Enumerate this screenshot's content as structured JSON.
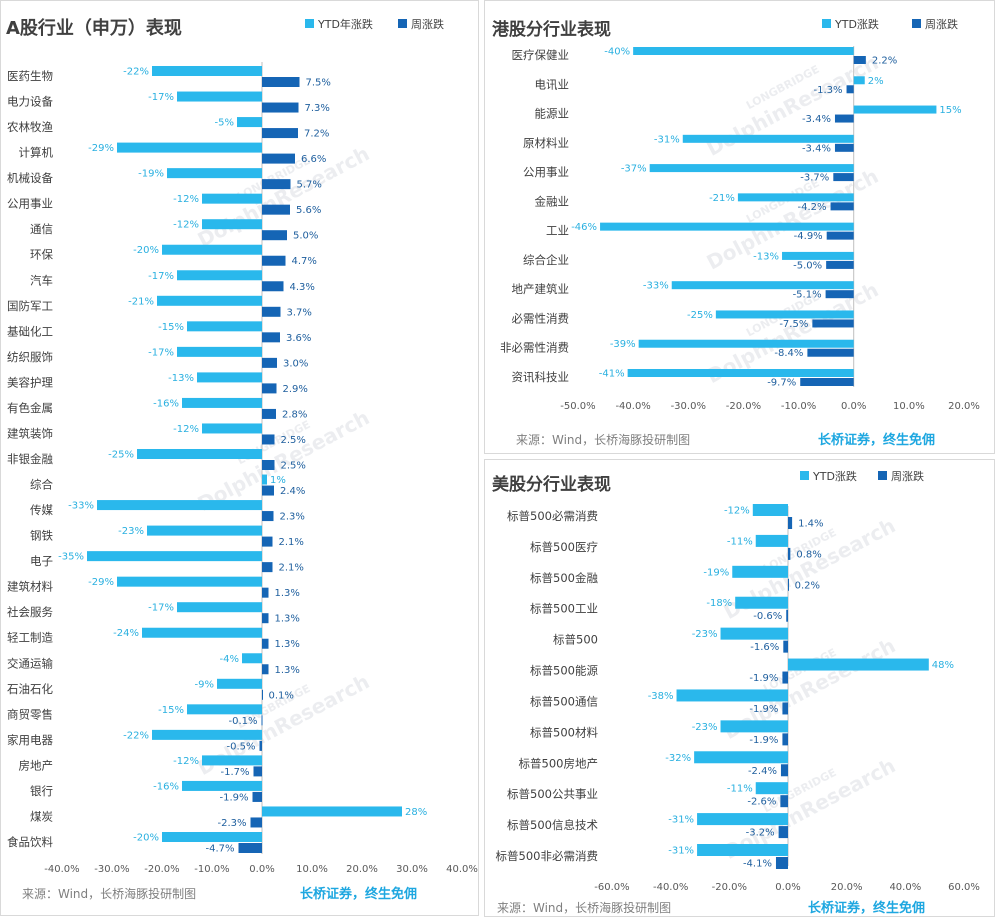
{
  "colors": {
    "ytd": "#2ab8ec",
    "week": "#1565b5",
    "weekLabel": "#1f5f9e",
    "ytdLabel": "#2ab0e0"
  },
  "watermark": {
    "line1": "LONGBRIDGE",
    "line2": "DolphinResearch"
  },
  "chart_data": [
    {
      "type": "bar",
      "orientation": "horizontal",
      "title": "A股行业（申万）表现",
      "legend": {
        "placement": "top-right"
      },
      "series": [
        {
          "name": "YTD年涨跌"
        },
        {
          "name": "周涨跌"
        }
      ],
      "xlim": [
        -40,
        40
      ],
      "ticks": [
        -40,
        -30,
        -20,
        -10,
        0,
        10,
        20,
        30,
        40
      ],
      "tick_labels": [
        "-40.0%",
        "-30.0%",
        "-20.0%",
        "-10.0%",
        "0.0%",
        "10.0%",
        "20.0%",
        "30.0%",
        "40.0%"
      ],
      "footer": {
        "source": "来源：Wind，长桥海豚投研制图",
        "slogan": "长桥证券，终生免佣"
      },
      "rows": [
        {
          "cat": "医药生物",
          "ytd": -22,
          "week": 7.5
        },
        {
          "cat": "电力设备",
          "ytd": -17,
          "week": 7.3
        },
        {
          "cat": "农林牧渔",
          "ytd": -5,
          "week": 7.2
        },
        {
          "cat": "计算机",
          "ytd": -29,
          "week": 6.6
        },
        {
          "cat": "机械设备",
          "ytd": -19,
          "week": 5.7
        },
        {
          "cat": "公用事业",
          "ytd": -12,
          "week": 5.6
        },
        {
          "cat": "通信",
          "ytd": -12,
          "week": 5.0
        },
        {
          "cat": "环保",
          "ytd": -20,
          "week": 4.7
        },
        {
          "cat": "汽车",
          "ytd": -17,
          "week": 4.3
        },
        {
          "cat": "国防军工",
          "ytd": -21,
          "week": 3.7
        },
        {
          "cat": "基础化工",
          "ytd": -15,
          "week": 3.6
        },
        {
          "cat": "纺织服饰",
          "ytd": -17,
          "week": 3.0
        },
        {
          "cat": "美容护理",
          "ytd": -13,
          "week": 2.9
        },
        {
          "cat": "有色金属",
          "ytd": -16,
          "week": 2.8
        },
        {
          "cat": "建筑装饰",
          "ytd": -12,
          "week": 2.5
        },
        {
          "cat": "非银金融",
          "ytd": -25,
          "week": 2.5
        },
        {
          "cat": "综合",
          "ytd": 1,
          "week": 2.4
        },
        {
          "cat": "传媒",
          "ytd": -33,
          "week": 2.3
        },
        {
          "cat": "钢铁",
          "ytd": -23,
          "week": 2.1
        },
        {
          "cat": "电子",
          "ytd": -35,
          "week": 2.1
        },
        {
          "cat": "建筑材料",
          "ytd": -29,
          "week": 1.3
        },
        {
          "cat": "社会服务",
          "ytd": -17,
          "week": 1.3
        },
        {
          "cat": "轻工制造",
          "ytd": -24,
          "week": 1.3
        },
        {
          "cat": "交通运输",
          "ytd": -4,
          "week": 1.3
        },
        {
          "cat": "石油石化",
          "ytd": -9,
          "week": 0.1
        },
        {
          "cat": "商贸零售",
          "ytd": -15,
          "week": -0.1
        },
        {
          "cat": "家用电器",
          "ytd": -22,
          "week": -0.5
        },
        {
          "cat": "房地产",
          "ytd": -12,
          "week": -1.7
        },
        {
          "cat": "银行",
          "ytd": -16,
          "week": -1.9
        },
        {
          "cat": "煤炭",
          "ytd": 28,
          "week": -2.3
        },
        {
          "cat": "食品饮料",
          "ytd": -20,
          "week": -4.7
        }
      ]
    },
    {
      "type": "bar",
      "orientation": "horizontal",
      "title": "港股分行业表现",
      "legend": {
        "placement": "top-right"
      },
      "series": [
        {
          "name": "YTD涨跌"
        },
        {
          "name": "周涨跌"
        }
      ],
      "xlim": [
        -50,
        20
      ],
      "ticks": [
        -50,
        -40,
        -30,
        -20,
        -10,
        0,
        10,
        20
      ],
      "tick_labels": [
        "-50.0%",
        "-40.0%",
        "-30.0%",
        "-20.0%",
        "-10.0%",
        "0.0%",
        "10.0%",
        "20.0%"
      ],
      "footer": {
        "source": "来源：Wind，长桥海豚投研制图",
        "slogan": "长桥证券，终生免佣"
      },
      "rows": [
        {
          "cat": "医疗保健业",
          "ytd": -40,
          "week": 2.2
        },
        {
          "cat": "电讯业",
          "ytd": 2,
          "week": -1.3
        },
        {
          "cat": "能源业",
          "ytd": 15,
          "week": -3.4
        },
        {
          "cat": "原材料业",
          "ytd": -31,
          "week": -3.4
        },
        {
          "cat": "公用事业",
          "ytd": -37,
          "week": -3.7
        },
        {
          "cat": "金融业",
          "ytd": -21,
          "week": -4.2
        },
        {
          "cat": "工业",
          "ytd": -46,
          "week": -4.9
        },
        {
          "cat": "综合企业",
          "ytd": -13,
          "week": -5.0
        },
        {
          "cat": "地产建筑业",
          "ytd": -33,
          "week": -5.1
        },
        {
          "cat": "必需性消费",
          "ytd": -25,
          "week": -7.5
        },
        {
          "cat": "非必需性消费",
          "ytd": -39,
          "week": -8.4
        },
        {
          "cat": "资讯科技业",
          "ytd": -41,
          "week": -9.7
        }
      ]
    },
    {
      "type": "bar",
      "orientation": "horizontal",
      "title": "美股分行业表现",
      "legend": {
        "placement": "top-right"
      },
      "series": [
        {
          "name": "YTD涨跌"
        },
        {
          "name": "周涨跌"
        }
      ],
      "xlim": [
        -60,
        60
      ],
      "ticks": [
        -60,
        -40,
        -20,
        0,
        20,
        40,
        60
      ],
      "tick_labels": [
        "-60.0%",
        "-40.0%",
        "-20.0%",
        "0.0%",
        "20.0%",
        "40.0%",
        "60.0%"
      ],
      "footer": {
        "source": "来源：Wind，长桥海豚投研制图",
        "slogan": "长桥证券，终生免佣"
      },
      "rows": [
        {
          "cat": "标普500必需消费",
          "ytd": -12,
          "week": 1.4
        },
        {
          "cat": "标普500医疗",
          "ytd": -11,
          "week": 0.8
        },
        {
          "cat": "标普500金融",
          "ytd": -19,
          "week": 0.2
        },
        {
          "cat": "标普500工业",
          "ytd": -18,
          "week": -0.6
        },
        {
          "cat": "标普500",
          "ytd": -23,
          "week": -1.6
        },
        {
          "cat": "标普500能源",
          "ytd": 48,
          "week": -1.9
        },
        {
          "cat": "标普500通信",
          "ytd": -38,
          "week": -1.9
        },
        {
          "cat": "标普500材料",
          "ytd": -23,
          "week": -1.9
        },
        {
          "cat": "标普500房地产",
          "ytd": -32,
          "week": -2.4
        },
        {
          "cat": "标普500公共事业",
          "ytd": -11,
          "week": -2.6
        },
        {
          "cat": "标普500信息技术",
          "ytd": -31,
          "week": -3.2
        },
        {
          "cat": "标普500非必需消费",
          "ytd": -31,
          "week": -4.1
        }
      ]
    }
  ]
}
